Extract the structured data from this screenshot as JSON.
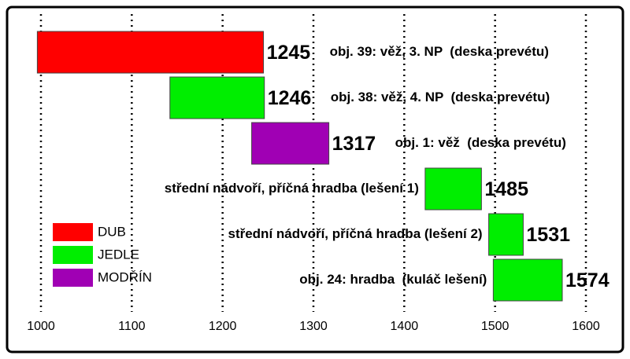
{
  "chart_data": {
    "type": "bar",
    "orientation": "horizontal",
    "series": [
      {
        "name": "DUB",
        "color": "#ff0000"
      },
      {
        "name": "JEDLE",
        "color": "#00ee00"
      },
      {
        "name": "MODŘÍN",
        "color": "#a000b4"
      }
    ],
    "bars": [
      {
        "series": 0,
        "start": 996,
        "end": 1245,
        "label": "obj. 39: věž, 3. NP  (deska prevétu)"
      },
      {
        "series": 1,
        "start": 1142,
        "end": 1246,
        "label": "obj. 38: věž, 4. NP  (deska prevétu)"
      },
      {
        "series": 2,
        "start": 1232,
        "end": 1317,
        "label": "obj. 1: věž  (deska prevétu)"
      },
      {
        "series": 1,
        "start": 1423,
        "end": 1485,
        "label": "střední nádvoří, příčná hradba (lešení 1)"
      },
      {
        "series": 1,
        "start": 1493,
        "end": 1531,
        "label": "střední nádvoří, příčná hradba (lešení 2)"
      },
      {
        "series": 1,
        "start": 1498,
        "end": 1574,
        "label": "obj. 24: hradba  (kuláč lešení)"
      }
    ],
    "xlim": [
      1000,
      1600
    ],
    "xticks": [
      1000,
      1100,
      1200,
      1300,
      1400,
      1500,
      1600
    ],
    "grid": true
  }
}
